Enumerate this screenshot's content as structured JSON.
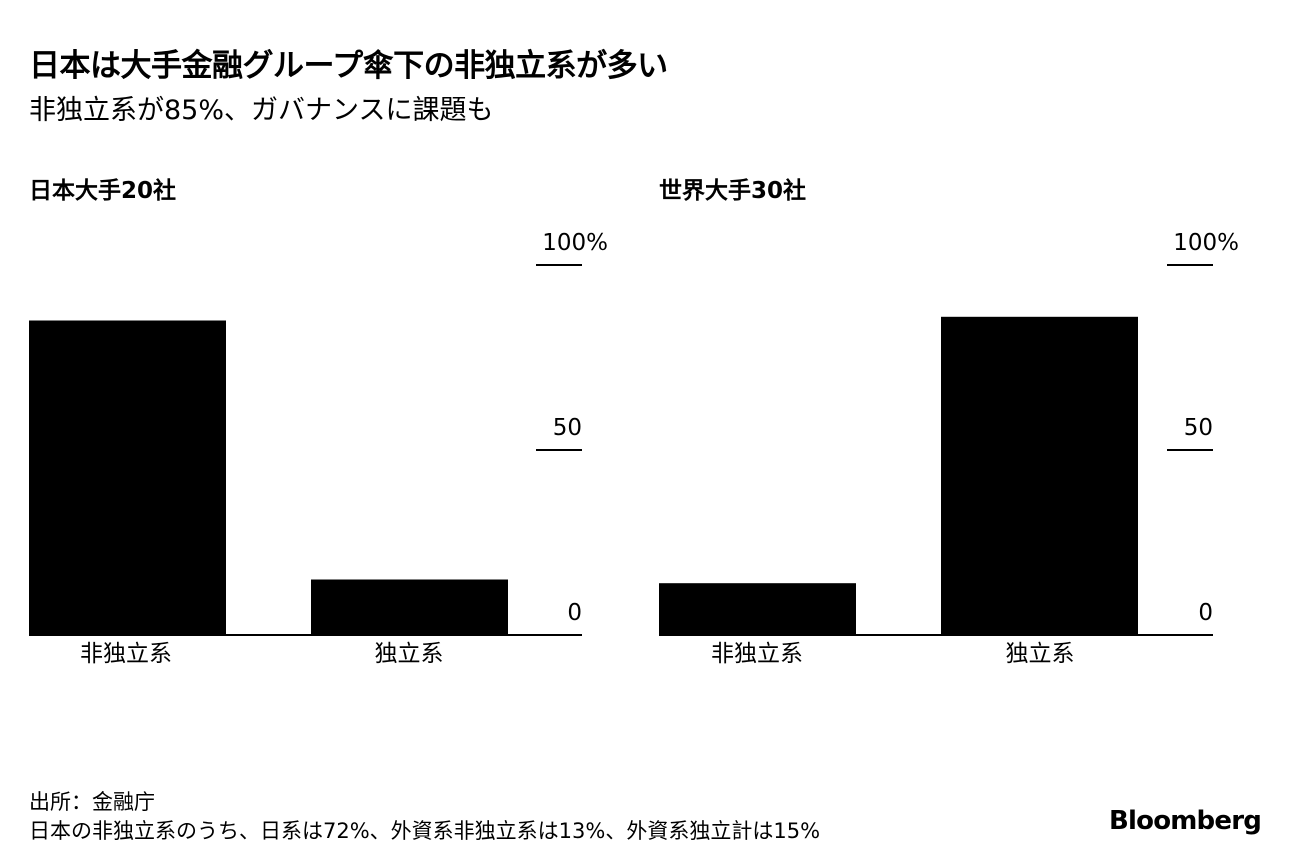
{
  "header": {
    "title": "日本は大手金融グループ傘下の非独立系が多い",
    "subtitle": "非独立系が85%、ガバナンスに課題も"
  },
  "chart_data": [
    {
      "type": "bar",
      "title": "日本大手20社",
      "categories": [
        "非独立系",
        "独立系"
      ],
      "values": [
        85,
        15
      ],
      "ylim": [
        0,
        100
      ],
      "yticks": [
        0,
        50,
        100
      ],
      "ytick_labels": [
        "0",
        "50",
        "100%"
      ],
      "grid": false,
      "bar_color": "#000000"
    },
    {
      "type": "bar",
      "title": "世界大手30社",
      "categories": [
        "非独立系",
        "独立系"
      ],
      "values": [
        14,
        86
      ],
      "ylim": [
        0,
        100
      ],
      "yticks": [
        0,
        50,
        100
      ],
      "ytick_labels": [
        "0",
        "50",
        "100%"
      ],
      "grid": false,
      "bar_color": "#000000"
    }
  ],
  "footer": {
    "source": "出所：金融庁",
    "note": "日本の非独立系のうち、日系は72%、外資系非独立系は13%、外資系独立計は15%",
    "logo": "Bloomberg"
  }
}
